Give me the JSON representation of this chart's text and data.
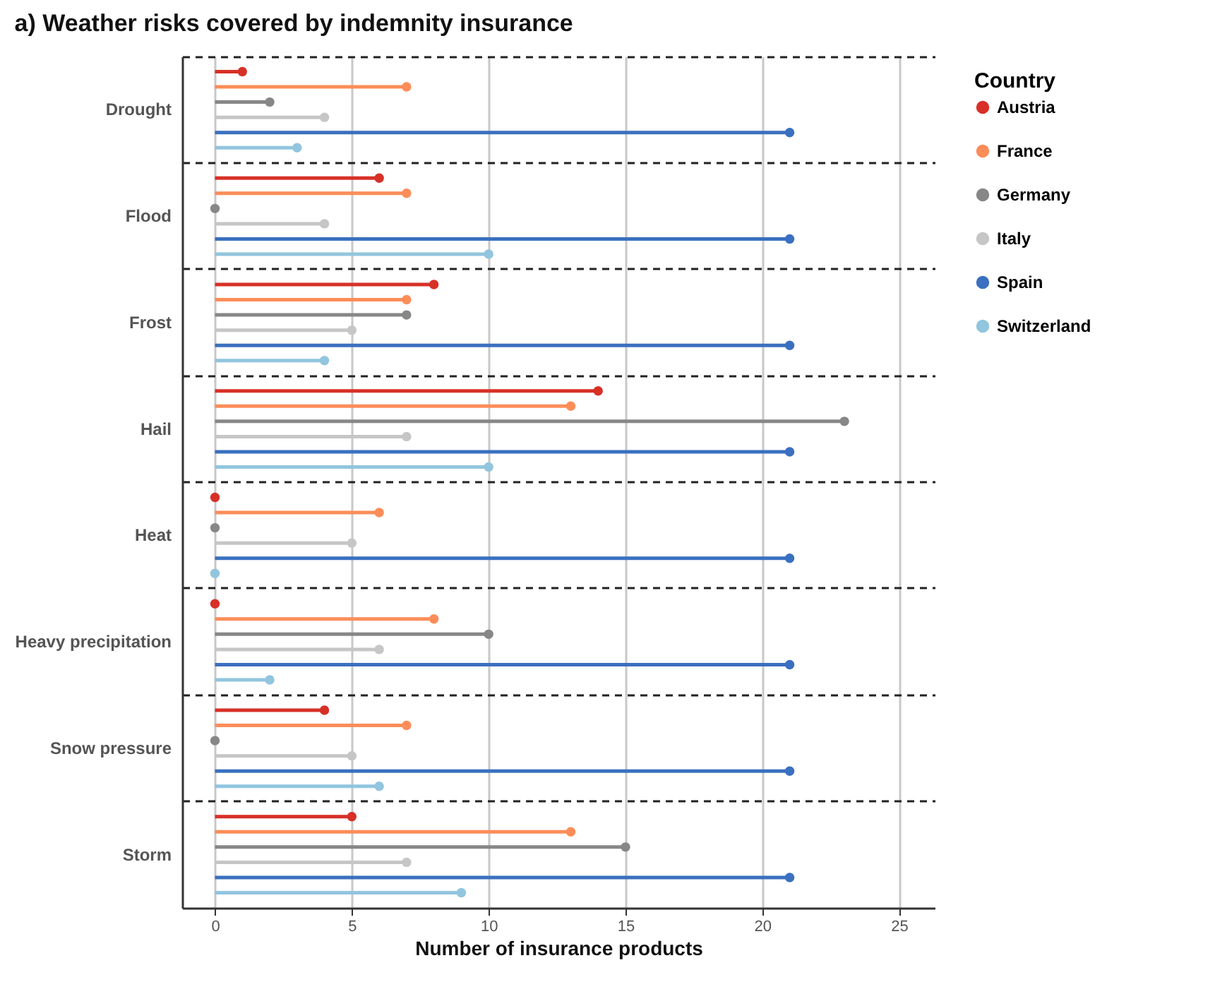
{
  "chart_data": {
    "type": "lollipop",
    "orientation": "horizontal",
    "title": "a) Weather risks covered by indemnity insurance",
    "xlabel": "Number of insurance products",
    "legend_title": "Country",
    "legend": "right",
    "grid": true,
    "marker": "circle",
    "categories": [
      "Drought",
      "Flood",
      "Frost",
      "Hail",
      "Heat",
      "Heavy precipitation",
      "Snow pressure",
      "Storm"
    ],
    "xlim": [
      -1.2,
      26.3
    ],
    "xticks": [
      0,
      5,
      10,
      15,
      20,
      25
    ],
    "series": [
      {
        "name": "Austria",
        "color": "#d73027",
        "values": [
          1,
          6,
          8,
          14,
          0,
          0,
          4,
          5
        ]
      },
      {
        "name": "France",
        "color": "#fc8d59",
        "values": [
          7,
          7,
          7,
          13,
          6,
          8,
          7,
          13
        ]
      },
      {
        "name": "Germany",
        "color": "#878787",
        "values": [
          2,
          0,
          7,
          23,
          0,
          10,
          0,
          15
        ]
      },
      {
        "name": "Italy",
        "color": "#c6c6c6",
        "values": [
          4,
          4,
          5,
          7,
          5,
          6,
          5,
          7
        ]
      },
      {
        "name": "Spain",
        "color": "#3a70bf",
        "values": [
          21,
          21,
          21,
          21,
          21,
          21,
          21,
          21
        ]
      },
      {
        "name": "Switzerland",
        "color": "#92c5de",
        "values": [
          3,
          10,
          4,
          10,
          0,
          2,
          6,
          9
        ]
      }
    ]
  }
}
